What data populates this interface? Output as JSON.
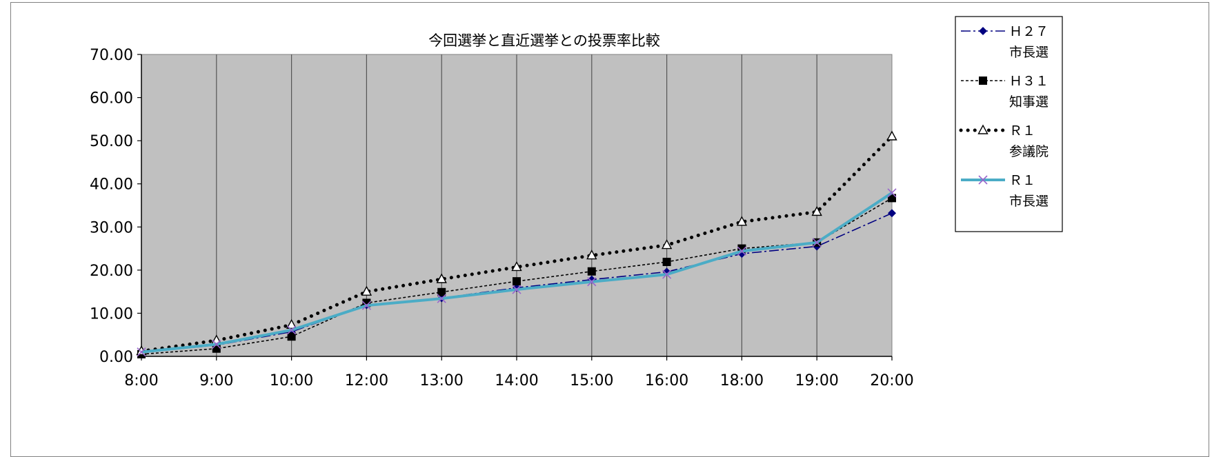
{
  "chart_data": {
    "type": "line",
    "title": "今回選挙と直近選挙との投票率比較",
    "categories": [
      "8:00",
      "9:00",
      "10:00",
      "12:00",
      "13:00",
      "14:00",
      "15:00",
      "16:00",
      "18:00",
      "19:00",
      "20:00"
    ],
    "y_ticks": [
      "0.00",
      "10.00",
      "20.00",
      "30.00",
      "40.00",
      "50.00",
      "60.00",
      "70.00"
    ],
    "ylim": [
      0,
      70
    ],
    "grid": "vertical",
    "plot_background": "#c0c0c0",
    "legend_position": "right",
    "series": [
      {
        "name": "Ｈ２７市長選",
        "legend_lines": [
          "Ｈ２７",
          "市長選"
        ],
        "color": "#000080",
        "line_style": "dash-dot",
        "marker": "diamond",
        "values": [
          0.9,
          2.6,
          5.7,
          11.9,
          13.5,
          15.9,
          17.8,
          19.6,
          23.8,
          25.5,
          33.2
        ]
      },
      {
        "name": "Ｈ３１知事選",
        "legend_lines": [
          "Ｈ３１",
          "知事選"
        ],
        "color": "#000000",
        "line_style": "short-dash",
        "marker": "square",
        "values": [
          0.5,
          1.8,
          4.6,
          12.4,
          14.9,
          17.4,
          19.7,
          21.9,
          25.0,
          26.4,
          36.7
        ]
      },
      {
        "name": "Ｒ１参議院",
        "legend_lines": [
          "Ｒ１",
          "参議院"
        ],
        "color": "#000000",
        "line_style": "dotted",
        "marker": "triangle",
        "values": [
          1.2,
          3.7,
          7.3,
          15.0,
          17.9,
          20.7,
          23.4,
          25.8,
          31.2,
          33.5,
          51.0
        ]
      },
      {
        "name": "Ｒ１市長選",
        "legend_lines": [
          "Ｒ１",
          "市長選"
        ],
        "color": "#4bacc6",
        "marker_color": "#9966cc",
        "line_style": "solid",
        "marker": "x",
        "values": [
          1.0,
          2.8,
          6.1,
          11.8,
          13.4,
          15.5,
          17.3,
          19.0,
          24.4,
          26.4,
          37.9
        ]
      }
    ]
  }
}
